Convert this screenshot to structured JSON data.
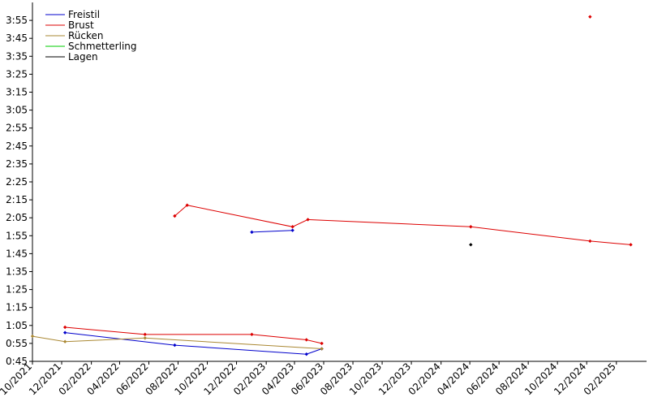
{
  "chart_data": {
    "type": "line",
    "title": "",
    "xlabel": "",
    "ylabel": "",
    "x_range": [
      "2021-10-01",
      "2025-04-05"
    ],
    "y_range_seconds": [
      45,
      245
    ],
    "y_tick_labels": [
      "0:45",
      "0:55",
      "1:05",
      "1:15",
      "1:25",
      "1:35",
      "1:45",
      "1:55",
      "2:05",
      "2:15",
      "2:25",
      "2:35",
      "2:45",
      "2:55",
      "3:05",
      "3:15",
      "3:25",
      "3:35",
      "3:45",
      "3:55"
    ],
    "x_tick_labels": [
      "10/2021",
      "12/2021",
      "02/2022",
      "04/2022",
      "06/2022",
      "08/2022",
      "10/2022",
      "12/2022",
      "02/2023",
      "04/2023",
      "06/2023",
      "08/2023",
      "10/2023",
      "12/2023",
      "02/2024",
      "04/2024",
      "06/2024",
      "08/2024",
      "10/2024",
      "12/2024",
      "02/2025"
    ],
    "grid": false,
    "legend_position": "top-left",
    "series": [
      {
        "name": "Freistil",
        "color": "#0000cc",
        "segments": [
          [
            [
              "2021-12-08",
              61
            ],
            [
              "2022-07-25",
              54
            ],
            [
              "2023-04-26",
              49
            ],
            [
              "2023-05-28",
              52
            ]
          ],
          [
            [
              "2023-01-02",
              117
            ],
            [
              "2023-03-28",
              118
            ]
          ]
        ]
      },
      {
        "name": "Brust",
        "color": "#dd0000",
        "segments": [
          [
            [
              "2021-12-08",
              64
            ],
            [
              "2022-05-24",
              60
            ],
            [
              "2023-01-02",
              60
            ],
            [
              "2023-04-26",
              57
            ],
            [
              "2023-05-28",
              55
            ]
          ],
          [
            [
              "2022-07-25",
              126
            ],
            [
              "2022-08-20",
              132
            ],
            [
              "2023-03-28",
              120
            ],
            [
              "2023-04-29",
              124
            ],
            [
              "2024-04-03",
              120
            ],
            [
              "2024-12-08",
              112
            ],
            [
              "2025-03-03",
              110
            ]
          ],
          [
            [
              "2024-12-08",
              237
            ]
          ]
        ]
      },
      {
        "name": "Rücken",
        "color": "#aa8833",
        "segments": [
          [
            [
              "2021-10-01",
              59
            ],
            [
              "2021-12-08",
              56
            ],
            [
              "2022-05-24",
              58
            ],
            [
              "2023-05-28",
              52
            ]
          ]
        ]
      },
      {
        "name": "Schmetterling",
        "color": "#00cc00",
        "segments": []
      },
      {
        "name": "Lagen",
        "color": "#000000",
        "segments": [
          [
            [
              "2024-04-03",
              110
            ]
          ]
        ]
      }
    ]
  }
}
